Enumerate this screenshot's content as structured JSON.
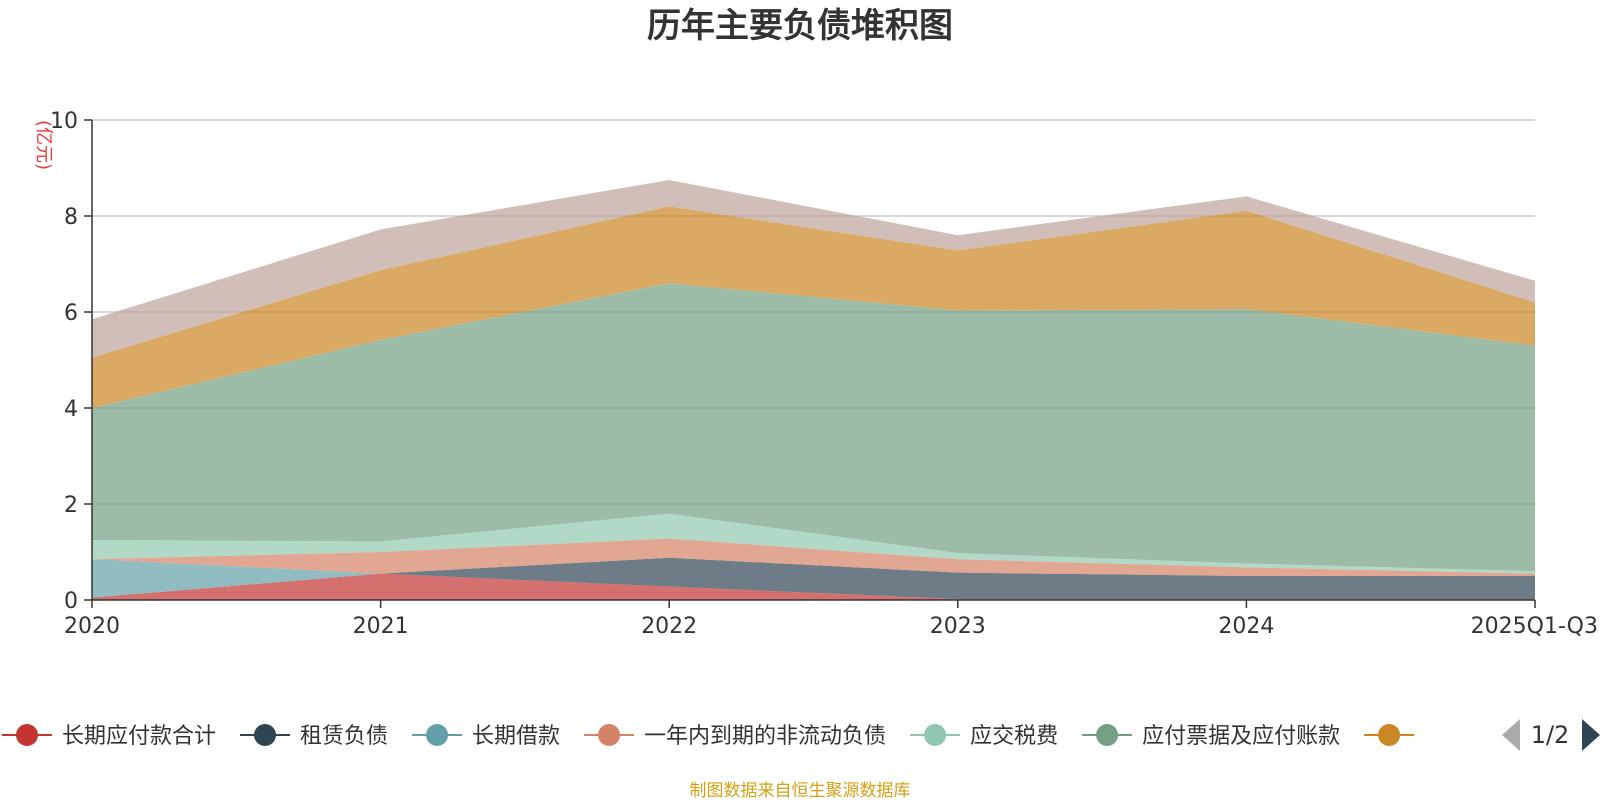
{
  "chart_data": {
    "type": "area",
    "stacked": true,
    "title": "历年主要负债堆积图",
    "unit_label": "(亿元)",
    "categories": [
      "2020",
      "2021",
      "2022",
      "2023",
      "2024",
      "2025Q1-Q3"
    ],
    "ylim": [
      0,
      10
    ],
    "yticks": [
      0,
      2,
      4,
      6,
      8,
      10
    ],
    "grid": true,
    "series": [
      {
        "name": "长期应付款合计",
        "color": "#c23531",
        "values": [
          0.05,
          0.55,
          0.28,
          0.02,
          0.02,
          0.02
        ]
      },
      {
        "name": "租赁负债",
        "color": "#2f4554",
        "values": [
          0.0,
          0.0,
          0.6,
          0.55,
          0.48,
          0.48
        ]
      },
      {
        "name": "长期借款",
        "color": "#61a0a8",
        "values": [
          0.8,
          0.0,
          0.0,
          0.0,
          0.0,
          0.0
        ]
      },
      {
        "name": "一年内到期的非流动负债",
        "color": "#d48265",
        "values": [
          0.0,
          0.45,
          0.4,
          0.28,
          0.18,
          0.05
        ]
      },
      {
        "name": "应交税费",
        "color": "#91c7ae",
        "values": [
          0.4,
          0.22,
          0.52,
          0.13,
          0.08,
          0.05
        ]
      },
      {
        "name": "应付票据及应付账款",
        "color": "#749f83",
        "values": [
          2.75,
          4.2,
          4.8,
          5.05,
          5.3,
          4.7
        ]
      },
      {
        "name": "",
        "color": "#ca8622",
        "values": [
          1.05,
          1.45,
          1.6,
          1.25,
          2.05,
          0.9
        ]
      },
      {
        "name": "",
        "color": "#bda29a",
        "values": [
          0.8,
          0.85,
          0.55,
          0.32,
          0.3,
          0.45
        ]
      }
    ],
    "legend": {
      "visible_count": 7,
      "page": "1/2",
      "position": "bottom"
    },
    "source": "制图数据来自恒生聚源数据库"
  }
}
